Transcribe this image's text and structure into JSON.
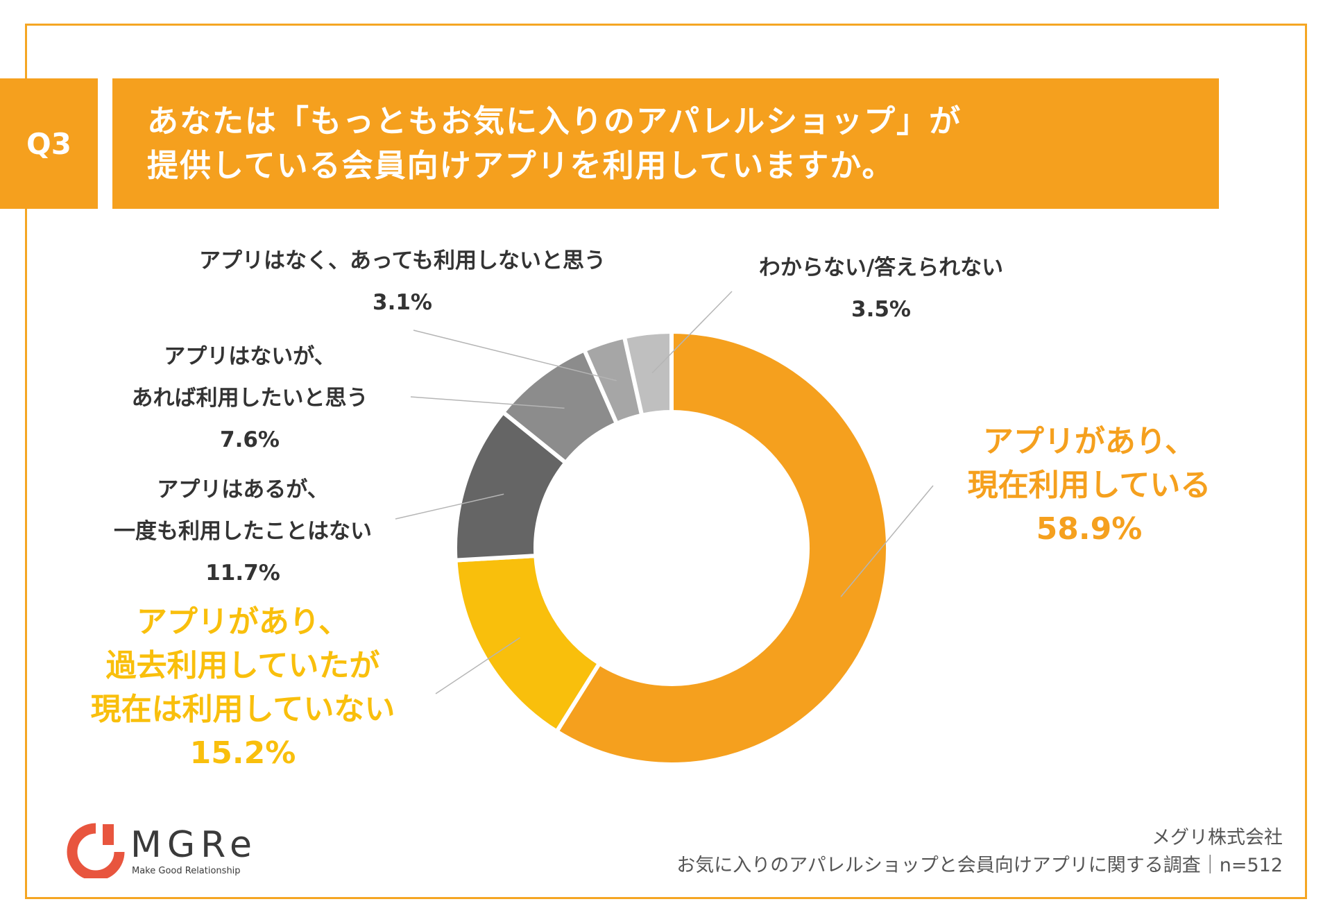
{
  "header": {
    "badge": "Q3",
    "title_line1": "あなたは「もっともお気に入りのアパレルショップ」が",
    "title_line2": "提供している会員向けアプリを利用していますか。"
  },
  "chart_data": {
    "type": "pie",
    "donut": true,
    "slices": [
      {
        "label_lines": [
          "アプリがあり、",
          "現在利用している"
        ],
        "value": 58.9,
        "value_label": "58.9%",
        "color": "#f5a01e"
      },
      {
        "label_lines": [
          "アプリがあり、",
          "過去利用していたが",
          "現在は利用していない"
        ],
        "value": 15.2,
        "value_label": "15.2%",
        "color": "#f9bf0c"
      },
      {
        "label_lines": [
          "アプリはあるが、",
          "一度も利用したことはない"
        ],
        "value": 11.7,
        "value_label": "11.7%",
        "color": "#656565"
      },
      {
        "label_lines": [
          "アプリはないが、",
          "あれば利用したいと思う"
        ],
        "value": 7.6,
        "value_label": "7.6%",
        "color": "#8c8c8c"
      },
      {
        "label_lines": [
          "アプリはなく、あっても利用しないと思う"
        ],
        "value": 3.1,
        "value_label": "3.1%",
        "color": "#a6a6a6"
      },
      {
        "label_lines": [
          "わからない/答えられない"
        ],
        "value": 3.5,
        "value_label": "3.5%",
        "color": "#bfbfbf"
      }
    ]
  },
  "logo": {
    "text": "MGRe",
    "tagline": "Make Good Relationship"
  },
  "footer": {
    "company": "メグリ株式会社",
    "survey": "お気に入りのアパレルショップと会員向けアプリに関する調査｜n=512"
  },
  "colors": {
    "accent": "#f5a01e",
    "logo_red": "#e8553e"
  }
}
